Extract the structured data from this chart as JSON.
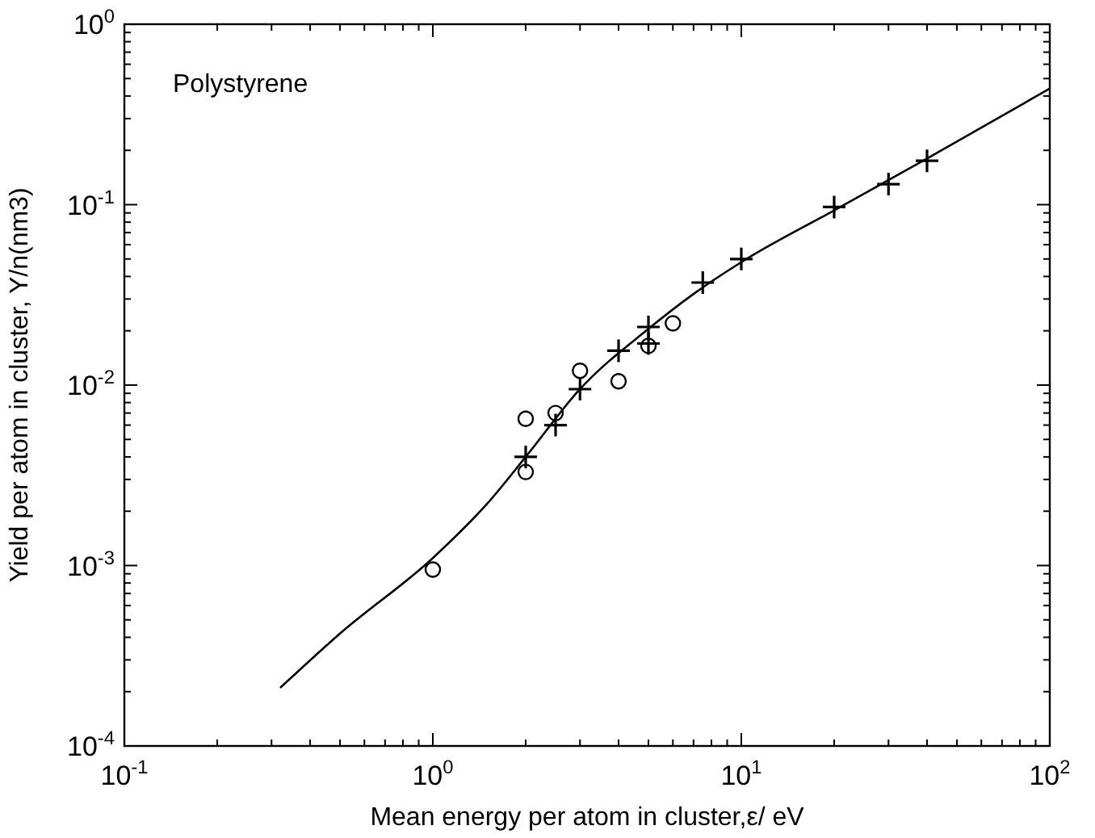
{
  "chart_data": {
    "type": "scatter",
    "xlabel": "Mean energy per atom in cluster,ε/ eV",
    "ylabel": "Yield per atom in cluster, Y/n(nm3)",
    "annotations": [
      "Polystyrene"
    ],
    "log": "xy",
    "grid": false,
    "xlim": [
      0.1,
      100
    ],
    "ylim": [
      0.0001,
      1
    ],
    "xticks": [
      {
        "value": 0.1,
        "label": "10$^{-1}$"
      },
      {
        "value": 1,
        "label": "10$^{0}$"
      },
      {
        "value": 10,
        "label": "10$^{1}$"
      },
      {
        "value": 100,
        "label": "10$^{2}$"
      }
    ],
    "yticks": [
      {
        "value": 0.0001,
        "label": "10$^{-4}$"
      },
      {
        "value": 0.001,
        "label": "10$^{-3}$"
      },
      {
        "value": 0.01,
        "label": "10$^{-2}$"
      },
      {
        "value": 0.1,
        "label": "10$^{-1}$"
      },
      {
        "value": 1,
        "label": "10$^{0}$"
      }
    ],
    "series": [
      {
        "type": "line",
        "color": "#000000",
        "marker": "none",
        "line_style": "solid",
        "x": [
          0.32,
          0.5,
          1,
          1.5,
          2,
          3,
          5,
          7,
          10,
          20,
          40,
          100
        ],
        "values": [
          0.00021,
          0.00042,
          0.0011,
          0.0022,
          0.004,
          0.0095,
          0.0205,
          0.032,
          0.048,
          0.093,
          0.18,
          0.44
        ]
      },
      {
        "color": "#000000",
        "marker": "cross",
        "x": [
          2,
          2.5,
          3,
          4,
          5,
          5,
          7.5,
          10,
          20,
          30,
          40
        ],
        "values": [
          0.004,
          0.006,
          0.0095,
          0.0155,
          0.021,
          0.017,
          0.037,
          0.05,
          0.097,
          0.13,
          0.175
        ]
      },
      {
        "color": "#000000",
        "marker": "circle",
        "x": [
          1,
          2,
          2,
          2.5,
          3,
          4,
          5,
          6
        ],
        "values": [
          0.00095,
          0.0065,
          0.0033,
          0.007,
          0.012,
          0.0105,
          0.0165,
          0.022
        ]
      }
    ]
  }
}
